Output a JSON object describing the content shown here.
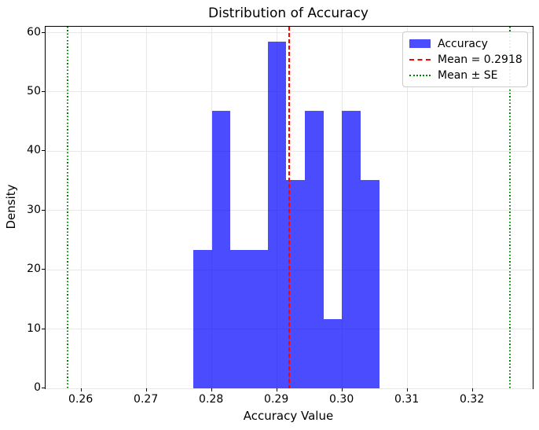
{
  "figure": {
    "title": "Distribution of Accuracy",
    "xlabel": "Accuracy Value",
    "ylabel": "Density"
  },
  "legend": {
    "position": "upper right",
    "items": [
      {
        "label": "Accuracy",
        "marker": "patch",
        "color": "rgba(0,0,255,0.7)"
      },
      {
        "label": "Mean = 0.2918",
        "marker": "dashed",
        "color": "#ff0000"
      },
      {
        "label": "Mean ± SE",
        "marker": "dotted",
        "color": "#008000"
      }
    ]
  },
  "chart_data": {
    "type": "bar",
    "subtype": "histogram",
    "title": "Distribution of Accuracy",
    "xlabel": "Accuracy Value",
    "ylabel": "Density",
    "series_name": "Accuracy",
    "bin_edges": [
      0.27715,
      0.28,
      0.28285,
      0.2857,
      0.28855,
      0.2914,
      0.29425,
      0.2971,
      0.29995,
      0.3028,
      0.30565
    ],
    "counts": [
      2,
      4,
      2,
      2,
      5,
      3,
      4,
      1,
      4,
      3
    ],
    "densities": [
      23.39,
      46.78,
      23.39,
      23.39,
      58.48,
      35.09,
      46.78,
      11.7,
      46.78,
      35.09
    ],
    "mean": 0.2918,
    "se": 0.0339,
    "mean_line": {
      "x": 0.2918,
      "style": "dashed",
      "color": "#ff0000"
    },
    "se_lines": {
      "x": [
        0.2579,
        0.3257
      ],
      "style": "dotted",
      "color": "#008000"
    },
    "xticks": [
      {
        "value": 0.26,
        "label": "0.26"
      },
      {
        "value": 0.27,
        "label": "0.27"
      },
      {
        "value": 0.28,
        "label": "0.28"
      },
      {
        "value": 0.29,
        "label": "0.29"
      },
      {
        "value": 0.3,
        "label": "0.30"
      },
      {
        "value": 0.31,
        "label": "0.31"
      },
      {
        "value": 0.32,
        "label": "0.32"
      }
    ],
    "yticks": [
      {
        "value": 0,
        "label": "0"
      },
      {
        "value": 10,
        "label": "10"
      },
      {
        "value": 20,
        "label": "20"
      },
      {
        "value": 30,
        "label": "30"
      },
      {
        "value": 40,
        "label": "40"
      },
      {
        "value": 50,
        "label": "50"
      },
      {
        "value": 60,
        "label": "60"
      }
    ],
    "xlim": [
      0.2545,
      0.3292
    ],
    "ylim": [
      0,
      61.0
    ],
    "grid": true,
    "bar_color": "rgba(0,0,255,0.7)",
    "legend_position": "upper right"
  }
}
